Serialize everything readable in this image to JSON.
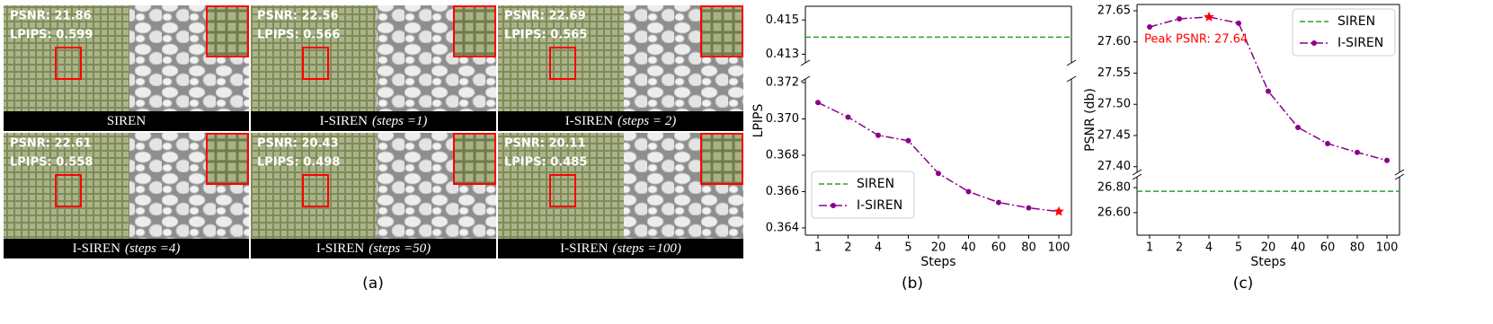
{
  "panel_a": {
    "label": "(a)",
    "images": [
      {
        "psnr": "PSNR: 21.86",
        "lpips": "LPIPS: 0.599",
        "method": "SIREN"
      },
      {
        "psnr": "PSNR: 22.56",
        "lpips": "LPIPS: 0.566",
        "method": "I-SIREN",
        "setting": "(steps =1)"
      },
      {
        "psnr": "PSNR: 22.69",
        "lpips": "LPIPS: 0.565",
        "method": "I-SIREN",
        "setting": "(steps = 2)"
      },
      {
        "psnr": "PSNR: 22.61",
        "lpips": "LPIPS: 0.558",
        "method": "I-SIREN",
        "setting": "(steps =4)"
      },
      {
        "psnr": "PSNR: 20.43",
        "lpips": "LPIPS: 0.498",
        "method": "I-SIREN",
        "setting": "(steps =50)"
      },
      {
        "psnr": "PSNR: 20.11",
        "lpips": "LPIPS: 0.485",
        "method": "I-SIREN",
        "setting": "(steps =100)"
      }
    ]
  },
  "chart_data": [
    {
      "type": "line",
      "panel_label": "(b)",
      "xlabel": "Steps",
      "ylabel": "LPIPS",
      "categories": [
        "1",
        "2",
        "4",
        "5",
        "20",
        "40",
        "60",
        "80",
        "100"
      ],
      "broken_axis": [
        {
          "ylim": [
            0.4125,
            0.4158
          ],
          "yticks": [
            0.413,
            0.415
          ]
        },
        {
          "ylim": [
            0.3636,
            0.3722
          ],
          "yticks": [
            0.364,
            0.366,
            0.368,
            {
              "value": 0.37,
              "label": "0.370"
            },
            0.372
          ]
        }
      ],
      "legend": "lower left",
      "series": [
        {
          "name": "SIREN",
          "color": "#2ca02c",
          "linestyle": "dashed",
          "segment": 0,
          "value": 0.414
        },
        {
          "name": "I-SIREN",
          "color": "#8b008b",
          "linestyle": "dashdot",
          "segment": 1,
          "values": [
            0.3709,
            0.3701,
            0.3691,
            0.3688,
            0.367,
            0.366,
            0.3654,
            0.3651,
            0.3649
          ],
          "star_point": 8,
          "star_color": "red"
        }
      ]
    },
    {
      "type": "line",
      "panel_label": "(c)",
      "xlabel": "Steps",
      "ylabel": "PSNR (db)",
      "categories": [
        "1",
        "2",
        "4",
        "5",
        "20",
        "40",
        "60",
        "80",
        "100"
      ],
      "broken_axis": [
        {
          "ylim": [
            27.391,
            27.66
          ],
          "yticks": [
            {
              "value": 27.4,
              "label": "27.40"
            },
            27.45,
            {
              "value": 27.5,
              "label": "27.50"
            },
            27.55,
            {
              "value": 27.6,
              "label": "27.60"
            },
            27.65
          ]
        },
        {
          "ylim": [
            26.42,
            26.886
          ],
          "yticks": [
            {
              "value": 26.6,
              "label": "26.60"
            },
            {
              "value": 26.8,
              "label": "26.80"
            }
          ]
        }
      ],
      "legend": "upper right",
      "annotation": "Peak PSNR: 27.64",
      "annotation_color": "red",
      "series": [
        {
          "name": "SIREN",
          "color": "#2ca02c",
          "linestyle": "dashed",
          "segment": 1,
          "value": 26.77
        },
        {
          "name": "I-SIREN",
          "color": "#8b008b",
          "linestyle": "dashdot",
          "segment": 0,
          "values": [
            27.624,
            27.637,
            27.64,
            27.63,
            27.521,
            27.463,
            27.437,
            27.423,
            27.41
          ],
          "star_point": 2,
          "star_color": "red"
        }
      ]
    }
  ]
}
